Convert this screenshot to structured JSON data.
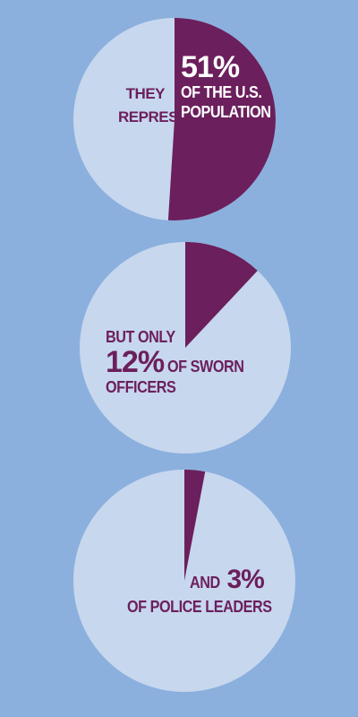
{
  "chart_data": [
    {
      "type": "pie",
      "values": [
        51,
        49
      ],
      "highlight_value": 51,
      "text": {
        "left_line1": "THEY",
        "left_line2": "REPRESENT",
        "big": "51%",
        "right_line1": "OF THE U.S.",
        "right_line2": "POPULATION"
      }
    },
    {
      "type": "pie",
      "values": [
        12,
        88
      ],
      "highlight_value": 12,
      "text": {
        "line1": "BUT ONLY",
        "big": "12%",
        "line2_rest": "OF SWORN",
        "line3": "OFFICERS"
      }
    },
    {
      "type": "pie",
      "values": [
        3,
        97
      ],
      "highlight_value": 3,
      "text": {
        "prefix": "AND",
        "big": "3%",
        "line2": "OF POLICE LEADERS"
      }
    }
  ],
  "colors": {
    "background": "#8bb0dd",
    "pie_base": "#c7d7ee",
    "pie_highlight": "#6b1f5c",
    "text_dark": "#6b1f5c",
    "text_light": "#ffffff"
  }
}
